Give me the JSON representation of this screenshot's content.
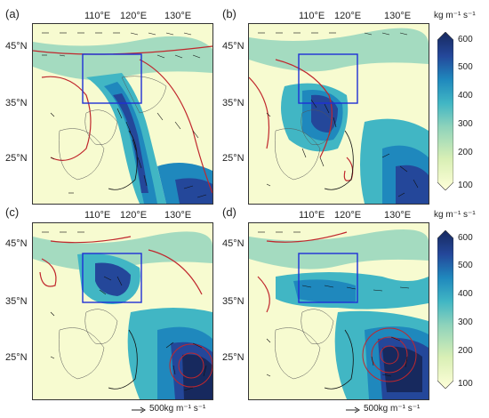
{
  "panels": [
    {
      "label": "(a)"
    },
    {
      "label": "(b)"
    },
    {
      "label": "(c)"
    },
    {
      "label": "(d)"
    }
  ],
  "lon_ticks": [
    "110°E",
    "120°E",
    "130°E"
  ],
  "lat_ticks": [
    "45°N",
    "35°N",
    "25°N"
  ],
  "colorbar": {
    "unit": "kg m⁻¹ s⁻¹",
    "ticks": [
      "600",
      "500",
      "400",
      "300",
      "200",
      "100"
    ],
    "colors": [
      "#ffffd9",
      "#d8efb5",
      "#8fd3bb",
      "#41b6c4",
      "#1f88bd",
      "#24479a",
      "#17295e"
    ]
  },
  "legend": {
    "top_label": "500kg m⁻¹ s⁻¹",
    "bottom_label": "500kg m⁻¹ s⁻¹"
  },
  "colors": {
    "contour": "#c0272d",
    "box": "#1f2fd6",
    "vector": "#111111"
  }
}
